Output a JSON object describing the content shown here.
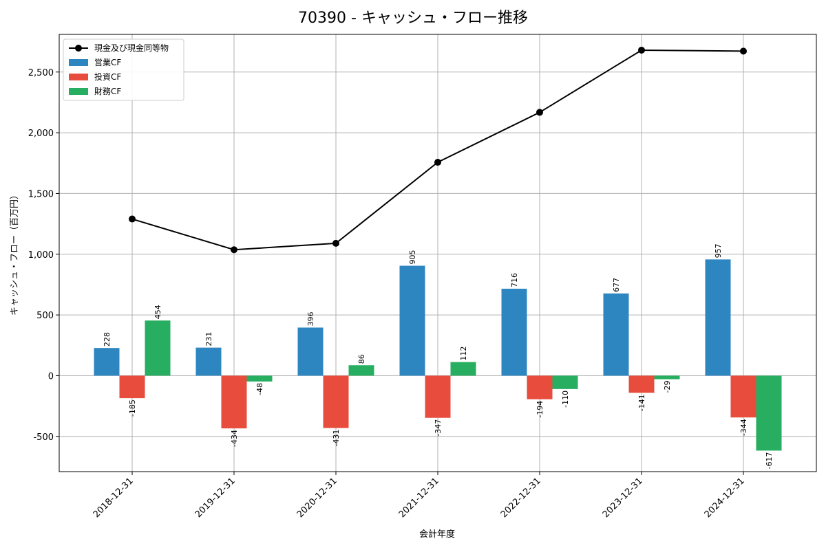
{
  "chart_data": {
    "type": "bar",
    "title": "70390 - キャッシュ・フロー推移",
    "xlabel": "会計年度",
    "ylabel": "キャッシュ・フロー（百万円）",
    "categories": [
      "2018-12-31",
      "2019-12-31",
      "2020-12-31",
      "2021-12-31",
      "2022-12-31",
      "2023-12-31",
      "2024-12-31"
    ],
    "series": [
      {
        "name": "営業CF",
        "kind": "bar",
        "color": "#2e86c1",
        "values": [
          228,
          231,
          396,
          905,
          716,
          677,
          957
        ]
      },
      {
        "name": "投資CF",
        "kind": "bar",
        "color": "#e74c3c",
        "values": [
          -185,
          -434,
          -431,
          -347,
          -194,
          -141,
          -344
        ]
      },
      {
        "name": "財務CF",
        "kind": "bar",
        "color": "#27ae60",
        "values": [
          454,
          -48,
          86,
          112,
          -110,
          -29,
          -617
        ]
      },
      {
        "name": "現金及び現金同等物",
        "kind": "line",
        "color": "#000000",
        "values": [
          1290,
          1037,
          1090,
          1757,
          2168,
          2680,
          2672
        ]
      }
    ],
    "ylim": [
      -790,
      2810
    ],
    "yticks": [
      -500,
      0,
      500,
      1000,
      1500,
      2000,
      2500
    ],
    "ytick_labels": [
      "-500",
      "0",
      "500",
      "1,000",
      "1,500",
      "2,000",
      "2,500"
    ],
    "grid": true,
    "legend_position": "top-left"
  }
}
